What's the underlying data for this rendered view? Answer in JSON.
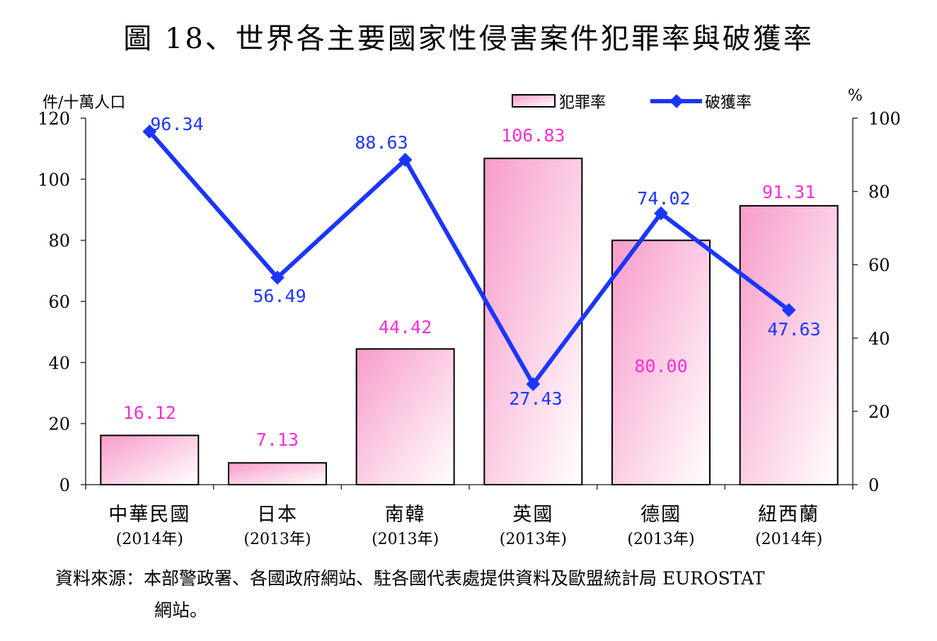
{
  "title": "圖 18、世界各主要國家性侵害案件犯罪率與破獲率",
  "source_line1": "資料來源：本部警政署、各國政府網站、駐各國代表處提供資料及歐盟統計局 EUROSTAT",
  "source_line2": "網站。",
  "colors": {
    "bar_fill_top": "#f79cc9",
    "bar_fill_bottom": "#ffffff",
    "line": "#1c35ff",
    "crime_label": "#ff2dd6",
    "clear_label": "#1c35ff"
  },
  "chart_data": {
    "type": "bar",
    "combo": "bar+line (dual axis)",
    "categories": [
      "中華民國",
      "日本",
      "南韓",
      "英國",
      "德國",
      "紐西蘭"
    ],
    "category_years": [
      "(2014年)",
      "(2013年)",
      "(2013年)",
      "(2013年)",
      "(2013年)",
      "(2014年)"
    ],
    "series": [
      {
        "name": "犯罪率",
        "type": "bar",
        "axis": "left",
        "values": [
          16.12,
          7.13,
          44.42,
          106.83,
          80.0,
          91.31
        ],
        "labels": [
          "16.12",
          "7.13",
          "44.42",
          "106.83",
          "80.00",
          "91.31"
        ]
      },
      {
        "name": "破獲率",
        "type": "line",
        "axis": "right",
        "values": [
          96.34,
          56.49,
          88.63,
          27.43,
          74.02,
          47.63
        ],
        "labels": [
          "96.34",
          "56.49",
          "88.63",
          "27.43",
          "74.02",
          "47.63"
        ]
      }
    ],
    "ylabel_left": "件/十萬人口",
    "ylabel_right": "%",
    "ylim_left": [
      0,
      120
    ],
    "yticks_left": [
      0,
      20,
      40,
      60,
      80,
      100,
      120
    ],
    "ylim_right": [
      0,
      100
    ],
    "yticks_right": [
      0,
      20,
      40,
      60,
      80,
      100
    ],
    "grid": false,
    "legend_position": "top-right"
  }
}
